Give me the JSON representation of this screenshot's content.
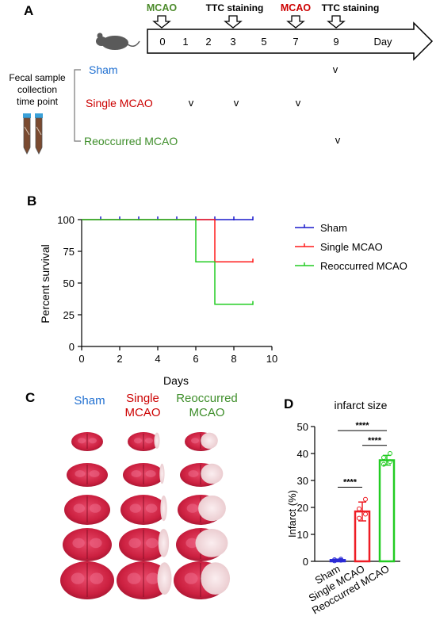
{
  "panels": {
    "a": "A",
    "b": "B",
    "c": "C",
    "d": "D"
  },
  "colors": {
    "sham": "#1f6fd1",
    "single": "#cc0000",
    "reoccurred": "#3e8e2a",
    "km_sham": "#1a1acc",
    "km_single": "#ff1a1a",
    "km_reoccurred": "#22cc22",
    "bar_sham": "#2a2ad6",
    "bar_single": "#ee1c24",
    "bar_reoccurred": "#22cc22"
  },
  "timeline": {
    "top_labels": [
      {
        "text": "MCAO",
        "color": "green"
      },
      {
        "text": "TTC staining",
        "color": "black"
      },
      {
        "text": "MCAO",
        "color": "red"
      },
      {
        "text": "TTC staining",
        "color": "black"
      }
    ],
    "days": [
      "0",
      "1",
      "2",
      "3",
      "5",
      "7",
      "9"
    ],
    "axis_word": "Day",
    "collection_label": [
      "Fecal sample",
      "collection",
      "time point"
    ],
    "groups": [
      {
        "name": "Sham",
        "marks": [
          "v"
        ]
      },
      {
        "name": "Single MCAO",
        "marks": [
          "v",
          "v",
          "v"
        ]
      },
      {
        "name": "Reoccurred MCAO",
        "marks": [
          "v"
        ]
      }
    ]
  },
  "chart_data": [
    {
      "type": "line",
      "panel": "B",
      "title": "",
      "xlabel": "Days",
      "ylabel": "Percent survival",
      "xlim": [
        0,
        10
      ],
      "ylim": [
        0,
        100
      ],
      "xticks": [
        0,
        2,
        4,
        6,
        8,
        10
      ],
      "yticks": [
        0,
        25,
        50,
        75,
        100
      ],
      "legend_position": "right",
      "series": [
        {
          "name": "Sham",
          "steps": [
            [
              0,
              100
            ],
            [
              9,
              100
            ]
          ],
          "ticks": [
            1,
            2,
            3,
            4,
            5,
            6,
            7,
            8,
            9
          ]
        },
        {
          "name": "Single MCAO",
          "steps": [
            [
              0,
              100
            ],
            [
              7,
              100
            ],
            [
              7,
              66.7
            ],
            [
              9,
              66.7
            ]
          ],
          "ticks": [
            9
          ]
        },
        {
          "name": "Reoccurred MCAO",
          "steps": [
            [
              0,
              100
            ],
            [
              6,
              100
            ],
            [
              6,
              66.7
            ],
            [
              7,
              66.7
            ],
            [
              7,
              33.3
            ],
            [
              9,
              33.3
            ]
          ],
          "ticks": [
            9
          ]
        }
      ]
    },
    {
      "type": "bar",
      "panel": "D",
      "title": "infarct size",
      "xlabel": "",
      "ylabel": "Infarct  (%)",
      "ylim": [
        0,
        50
      ],
      "yticks": [
        0,
        10,
        20,
        30,
        40,
        50
      ],
      "categories": [
        "Sham",
        "Single MCAO",
        "Reoccurred MCAO"
      ],
      "values": [
        0.5,
        18.5,
        37.5
      ],
      "errors": [
        0.3,
        3.5,
        1.8
      ],
      "points": [
        [
          0.2,
          0.4,
          0.6,
          0.8
        ],
        [
          16,
          17.5,
          19.5,
          23
        ],
        [
          36,
          37,
          38.5,
          40
        ]
      ],
      "significance": [
        {
          "pair": [
            0,
            2
          ],
          "label": "****"
        },
        {
          "pair": [
            1,
            2
          ],
          "label": "****"
        },
        {
          "pair": [
            0,
            1
          ],
          "label": "****"
        }
      ]
    }
  ],
  "brain_panel": {
    "columns": [
      {
        "lines": [
          "Sham"
        ],
        "color": "blue"
      },
      {
        "lines": [
          "Single",
          "MCAO"
        ],
        "color": "red"
      },
      {
        "lines": [
          "Reoccurred",
          "MCAO"
        ],
        "color": "green"
      }
    ]
  }
}
